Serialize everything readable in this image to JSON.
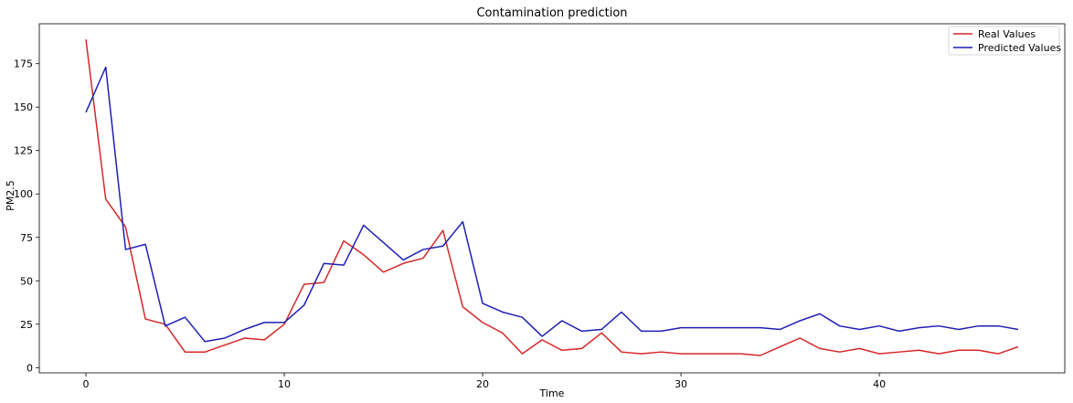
{
  "chart_data": {
    "type": "line",
    "title": "Contamination prediction",
    "xlabel": "Time",
    "ylabel": "PM2.5",
    "xlim": [
      -2.35,
      49.35
    ],
    "ylim": [
      -3,
      198
    ],
    "xticks": [
      0,
      10,
      20,
      30,
      40
    ],
    "yticks": [
      0,
      25,
      50,
      75,
      100,
      125,
      150,
      175
    ],
    "grid": false,
    "legend_position": "top-right",
    "x": [
      0,
      1,
      2,
      3,
      4,
      5,
      6,
      7,
      8,
      9,
      10,
      11,
      12,
      13,
      14,
      15,
      16,
      17,
      18,
      19,
      20,
      21,
      22,
      23,
      24,
      25,
      26,
      27,
      28,
      29,
      30,
      31,
      32,
      33,
      34,
      35,
      36,
      37,
      38,
      39,
      40,
      41,
      42,
      43,
      44,
      45,
      46,
      47
    ],
    "series": [
      {
        "name": "Real Values",
        "color": "#d62728",
        "values": [
          189,
          97,
          81,
          28,
          25,
          9,
          9,
          13,
          17,
          16,
          25,
          48,
          49,
          73,
          65,
          55,
          60,
          63,
          79,
          35,
          26,
          20,
          8,
          16,
          10,
          11,
          20,
          9,
          8,
          9,
          8,
          8,
          8,
          8,
          7,
          12,
          17,
          11,
          9,
          11,
          8,
          9,
          10,
          8,
          10,
          10,
          8,
          12
        ]
      },
      {
        "name": "Predicted Values",
        "color": "#1f1fb4",
        "values": [
          147,
          173,
          68,
          71,
          24,
          29,
          15,
          17,
          22,
          26,
          26,
          36,
          60,
          59,
          82,
          72,
          62,
          68,
          70,
          84,
          37,
          32,
          29,
          18,
          27,
          21,
          22,
          32,
          21,
          21,
          23,
          23,
          23,
          23,
          23,
          22,
          27,
          31,
          24,
          22,
          24,
          21,
          23,
          24,
          22,
          24,
          24,
          22
        ]
      }
    ]
  }
}
